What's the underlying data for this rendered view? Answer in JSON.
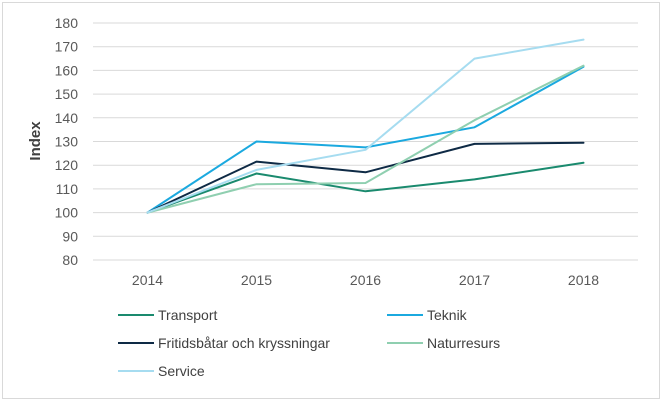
{
  "chart_data": {
    "type": "line",
    "categories": [
      "2014",
      "2015",
      "2016",
      "2017",
      "2018"
    ],
    "ylabel": "Index",
    "ylim": [
      80,
      180
    ],
    "yticks": [
      80,
      90,
      100,
      110,
      120,
      130,
      140,
      150,
      160,
      170,
      180
    ],
    "grid": true,
    "legend_position": "bottom",
    "series": [
      {
        "name": "Transport",
        "color": "#1a8a6e",
        "values": [
          100,
          116.5,
          109,
          114,
          121
        ]
      },
      {
        "name": "Teknik",
        "color": "#1ba9df",
        "values": [
          100,
          130,
          127.5,
          136,
          161.5
        ]
      },
      {
        "name": "Fritidsbåtar och kryssningar",
        "color": "#0e2a45",
        "values": [
          100,
          121.5,
          117,
          129,
          129.5
        ]
      },
      {
        "name": "Naturresurs",
        "color": "#8fcfb0",
        "values": [
          100,
          112,
          112.5,
          139,
          162
        ]
      },
      {
        "name": "Service",
        "color": "#a6dcf0",
        "values": [
          100,
          118,
          126.5,
          165,
          173
        ]
      }
    ]
  }
}
